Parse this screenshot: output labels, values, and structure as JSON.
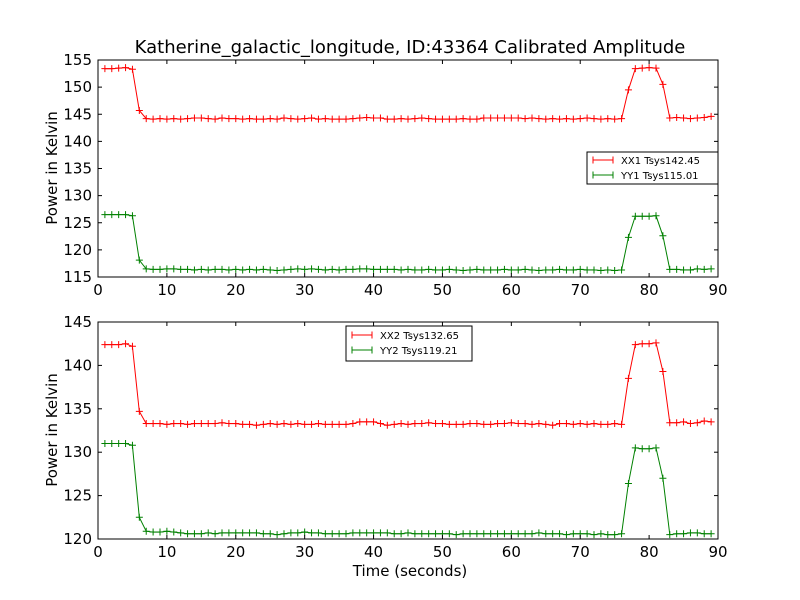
{
  "chart_data": [
    {
      "type": "line",
      "title": "Katherine_galactic_longitude, ID:43364 Calibrated Amplitude",
      "xlabel": "",
      "ylabel": "Power in Kelvin",
      "xlim": [
        0,
        90
      ],
      "ylim": [
        115,
        155
      ],
      "xticks": [
        0,
        10,
        20,
        30,
        40,
        50,
        60,
        70,
        80,
        90
      ],
      "yticks": [
        115,
        120,
        125,
        130,
        135,
        140,
        145,
        150,
        155
      ],
      "grid": false,
      "legend_position": "center-right",
      "x": [
        1,
        2,
        3,
        4,
        5,
        6,
        7,
        8,
        9,
        10,
        11,
        12,
        13,
        14,
        15,
        16,
        17,
        18,
        19,
        20,
        21,
        22,
        23,
        24,
        25,
        26,
        27,
        28,
        29,
        30,
        31,
        32,
        33,
        34,
        35,
        36,
        37,
        38,
        39,
        40,
        41,
        42,
        43,
        44,
        45,
        46,
        47,
        48,
        49,
        50,
        51,
        52,
        53,
        54,
        55,
        56,
        57,
        58,
        59,
        60,
        61,
        62,
        63,
        64,
        65,
        66,
        67,
        68,
        69,
        70,
        71,
        72,
        73,
        74,
        75,
        76,
        77,
        78,
        79,
        80,
        81,
        82,
        83,
        84,
        85,
        86,
        87,
        88,
        89
      ],
      "series": [
        {
          "name": "XX1 Tsys142.45",
          "color": "#ff0000",
          "values": [
            153.4,
            153.4,
            153.5,
            153.6,
            153.3,
            145.7,
            144.2,
            144.1,
            144.2,
            144.1,
            144.2,
            144.1,
            144.2,
            144.3,
            144.3,
            144.2,
            144.1,
            144.3,
            144.2,
            144.2,
            144.1,
            144.2,
            144.1,
            144.1,
            144.2,
            144.1,
            144.3,
            144.2,
            144.1,
            144.2,
            144.3,
            144.1,
            144.2,
            144.1,
            144.1,
            144.1,
            144.2,
            144.3,
            144.4,
            144.3,
            144.3,
            144.1,
            144.1,
            144.2,
            144.1,
            144.2,
            144.3,
            144.2,
            144.1,
            144.1,
            144.1,
            144.1,
            144.2,
            144.1,
            144.1,
            144.3,
            144.3,
            144.3,
            144.3,
            144.3,
            144.3,
            144.2,
            144.3,
            144.2,
            144.1,
            144.2,
            144.1,
            144.2,
            144.1,
            144.2,
            144.3,
            144.2,
            144.1,
            144.2,
            144.1,
            144.2,
            149.5,
            153.4,
            153.5,
            153.6,
            153.5,
            150.5,
            144.3,
            144.4,
            144.3,
            144.2,
            144.3,
            144.4,
            144.6
          ]
        },
        {
          "name": "YY1 Tsys115.01",
          "color": "#008000",
          "values": [
            126.5,
            126.5,
            126.5,
            126.5,
            126.3,
            118.1,
            116.5,
            116.4,
            116.4,
            116.5,
            116.5,
            116.4,
            116.4,
            116.3,
            116.4,
            116.3,
            116.4,
            116.4,
            116.3,
            116.4,
            116.3,
            116.4,
            116.3,
            116.4,
            116.3,
            116.2,
            116.3,
            116.4,
            116.5,
            116.4,
            116.5,
            116.4,
            116.3,
            116.4,
            116.3,
            116.4,
            116.4,
            116.5,
            116.5,
            116.4,
            116.4,
            116.4,
            116.4,
            116.3,
            116.4,
            116.3,
            116.3,
            116.4,
            116.3,
            116.3,
            116.4,
            116.3,
            116.2,
            116.3,
            116.4,
            116.3,
            116.3,
            116.3,
            116.4,
            116.3,
            116.3,
            116.4,
            116.3,
            116.2,
            116.3,
            116.3,
            116.4,
            116.3,
            116.3,
            116.4,
            116.3,
            116.3,
            116.2,
            116.3,
            116.2,
            116.3,
            122.3,
            126.2,
            126.2,
            126.2,
            126.3,
            122.6,
            116.4,
            116.4,
            116.3,
            116.3,
            116.5,
            116.4,
            116.5
          ]
        }
      ]
    },
    {
      "type": "line",
      "title": "",
      "xlabel": "Time (seconds)",
      "ylabel": "Power in Kelvin",
      "xlim": [
        0,
        90
      ],
      "ylim": [
        120,
        145
      ],
      "xticks": [
        0,
        10,
        20,
        30,
        40,
        50,
        60,
        70,
        80,
        90
      ],
      "yticks": [
        120,
        125,
        130,
        135,
        140,
        145
      ],
      "grid": false,
      "legend_position": "upper-center",
      "x": [
        1,
        2,
        3,
        4,
        5,
        6,
        7,
        8,
        9,
        10,
        11,
        12,
        13,
        14,
        15,
        16,
        17,
        18,
        19,
        20,
        21,
        22,
        23,
        24,
        25,
        26,
        27,
        28,
        29,
        30,
        31,
        32,
        33,
        34,
        35,
        36,
        37,
        38,
        39,
        40,
        41,
        42,
        43,
        44,
        45,
        46,
        47,
        48,
        49,
        50,
        51,
        52,
        53,
        54,
        55,
        56,
        57,
        58,
        59,
        60,
        61,
        62,
        63,
        64,
        65,
        66,
        67,
        68,
        69,
        70,
        71,
        72,
        73,
        74,
        75,
        76,
        77,
        78,
        79,
        80,
        81,
        82,
        83,
        84,
        85,
        86,
        87,
        88,
        89
      ],
      "series": [
        {
          "name": "XX2 Tsys132.65",
          "color": "#ff0000",
          "values": [
            142.4,
            142.4,
            142.4,
            142.5,
            142.2,
            134.7,
            133.3,
            133.3,
            133.3,
            133.2,
            133.3,
            133.3,
            133.2,
            133.3,
            133.3,
            133.3,
            133.3,
            133.4,
            133.3,
            133.3,
            133.2,
            133.2,
            133.1,
            133.2,
            133.3,
            133.2,
            133.3,
            133.2,
            133.3,
            133.2,
            133.2,
            133.3,
            133.2,
            133.2,
            133.2,
            133.2,
            133.3,
            133.5,
            133.5,
            133.5,
            133.3,
            133.1,
            133.2,
            133.3,
            133.2,
            133.3,
            133.3,
            133.4,
            133.3,
            133.3,
            133.2,
            133.2,
            133.2,
            133.3,
            133.3,
            133.2,
            133.2,
            133.3,
            133.3,
            133.4,
            133.3,
            133.3,
            133.2,
            133.3,
            133.2,
            133.1,
            133.3,
            133.3,
            133.2,
            133.3,
            133.2,
            133.3,
            133.2,
            133.2,
            133.3,
            133.2,
            138.5,
            142.4,
            142.5,
            142.5,
            142.6,
            139.3,
            133.4,
            133.4,
            133.5,
            133.3,
            133.4,
            133.6,
            133.5
          ]
        },
        {
          "name": "YY2 Tsys119.21",
          "color": "#008000",
          "values": [
            131.0,
            131.0,
            131.0,
            131.0,
            130.8,
            122.5,
            120.9,
            120.8,
            120.8,
            120.9,
            120.8,
            120.7,
            120.6,
            120.6,
            120.6,
            120.7,
            120.6,
            120.7,
            120.7,
            120.7,
            120.7,
            120.7,
            120.7,
            120.6,
            120.6,
            120.5,
            120.6,
            120.7,
            120.7,
            120.8,
            120.7,
            120.7,
            120.6,
            120.6,
            120.6,
            120.6,
            120.7,
            120.7,
            120.7,
            120.7,
            120.7,
            120.7,
            120.6,
            120.6,
            120.7,
            120.6,
            120.6,
            120.6,
            120.6,
            120.6,
            120.6,
            120.5,
            120.6,
            120.6,
            120.6,
            120.6,
            120.6,
            120.6,
            120.6,
            120.6,
            120.6,
            120.6,
            120.6,
            120.7,
            120.6,
            120.6,
            120.6,
            120.5,
            120.6,
            120.6,
            120.6,
            120.5,
            120.6,
            120.5,
            120.5,
            120.6,
            126.4,
            130.5,
            130.4,
            130.4,
            130.5,
            127.0,
            120.5,
            120.6,
            120.6,
            120.7,
            120.7,
            120.6,
            120.6
          ]
        }
      ]
    }
  ]
}
